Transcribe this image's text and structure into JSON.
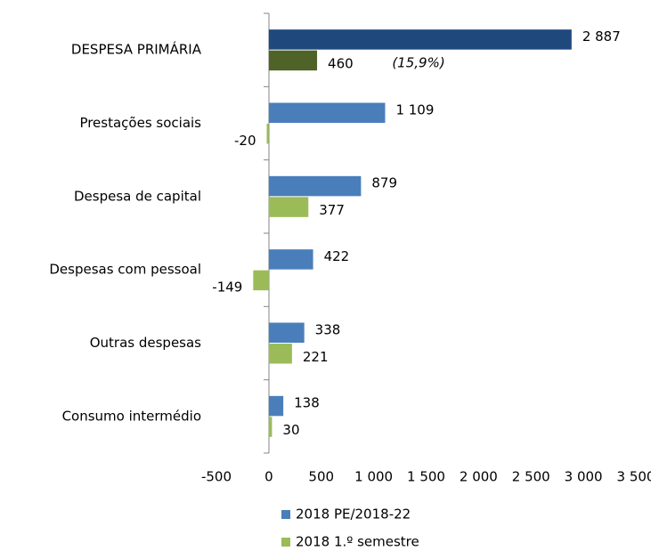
{
  "chart_data": {
    "type": "hbar",
    "categories": [
      "DESPESA PRIMÁRIA",
      "Prestações sociais",
      "Despesa de capital",
      "Despesas com pessoal",
      "Outras despesas",
      "Consumo intermédio"
    ],
    "series": [
      {
        "name": "2018 PE/2018-22",
        "color": "#4a7ebb",
        "colors": [
          "#1f497d",
          "#4a7ebb",
          "#4a7ebb",
          "#4a7ebb",
          "#4a7ebb",
          "#4a7ebb"
        ],
        "values": [
          2887,
          1109,
          879,
          422,
          338,
          138
        ],
        "value_labels": [
          "2 887",
          "1 109",
          "879",
          "422",
          "338",
          "138"
        ]
      },
      {
        "name": "2018 1.º semestre",
        "color": "#9bbb59",
        "colors": [
          "#4f6228",
          "#9bbb59",
          "#9bbb59",
          "#9bbb59",
          "#9bbb59",
          "#9bbb59"
        ],
        "values": [
          460,
          -20,
          377,
          -149,
          221,
          30
        ]
      }
    ],
    "annotations": [
      "(15,9%)"
    ],
    "xlim": [
      -500,
      3500
    ],
    "xticks": [
      -500,
      0,
      500,
      {
        "value": 1000,
        "label": "1 000"
      },
      {
        "value": 1500,
        "label": "1 500"
      },
      {
        "value": 2000,
        "label": "2 000"
      },
      {
        "value": 2500,
        "label": "2 500"
      },
      {
        "value": 3000,
        "label": "3 000"
      },
      {
        "value": 3500,
        "label": "3 500"
      }
    ],
    "grid": false,
    "legend": "bottom"
  }
}
